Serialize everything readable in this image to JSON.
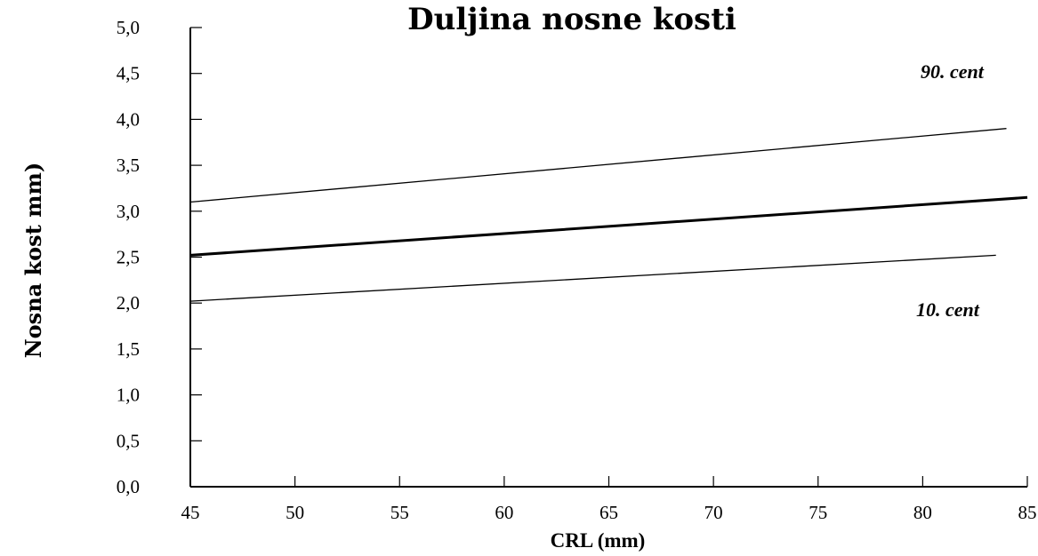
{
  "chart_data": {
    "type": "line",
    "title": "Duljina nosne kosti",
    "xlabel": "CRL (mm)",
    "ylabel": "Nosna kost mm)",
    "xlim": [
      45,
      85
    ],
    "ylim": [
      0,
      5
    ],
    "xticks": [
      "45",
      "50",
      "55",
      "60",
      "65",
      "70",
      "75",
      "80",
      "85"
    ],
    "yticks": [
      "0,0",
      "0,5",
      "1,0",
      "1,5",
      "2,0",
      "2,5",
      "3,0",
      "3,5",
      "4,0",
      "4,5",
      "5,0"
    ],
    "grid": false,
    "series": [
      {
        "name": "90. cent",
        "x": [
          45,
          84
        ],
        "y": [
          3.1,
          3.9
        ],
        "color": "#000000",
        "weight": "thin"
      },
      {
        "name": "",
        "x": [
          45,
          85
        ],
        "y": [
          2.52,
          3.15
        ],
        "color": "#000000",
        "weight": "thick"
      },
      {
        "name": "10. cent",
        "x": [
          45,
          83.5
        ],
        "y": [
          2.02,
          2.52
        ],
        "color": "#000000",
        "weight": "thin"
      }
    ],
    "annotations": [
      "90. cent",
      "10. cent"
    ]
  }
}
